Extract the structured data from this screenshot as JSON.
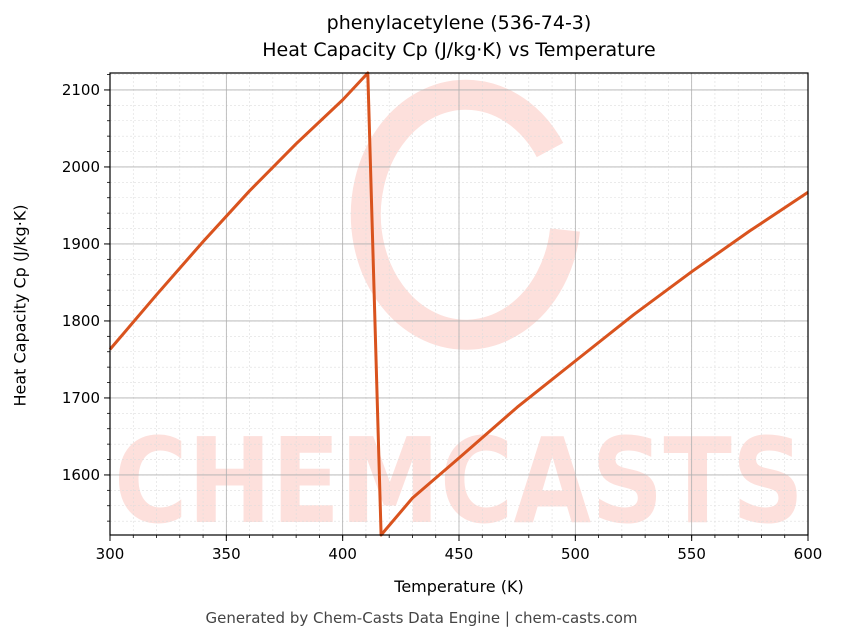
{
  "chart_data": {
    "type": "line",
    "title": "phenylacetylene (536-74-3)",
    "subtitle": "Heat Capacity Cp (J/kg·K) vs Temperature",
    "xlabel": "Temperature (K)",
    "ylabel": "Heat Capacity Cp (J/kg·K)",
    "xlim": [
      300,
      600
    ],
    "ylim": [
      1522,
      2122
    ],
    "xticks": [
      300,
      350,
      400,
      450,
      500,
      550,
      600
    ],
    "yticks": [
      1600,
      1700,
      1800,
      1900,
      2000,
      2100
    ],
    "grid": true,
    "legend": null,
    "series": [
      {
        "name": "Cp",
        "color": "#d9531e",
        "x": [
          300,
          320,
          340,
          360,
          380,
          400,
          410.8,
          416.5,
          430,
          450,
          475,
          500,
          525,
          550,
          575,
          600
        ],
        "y": [
          1763,
          1834,
          1903,
          1969,
          2030,
          2087,
          2122,
          1522,
          1570,
          1622,
          1688,
          1748,
          1808,
          1864,
          1917,
          1967
        ]
      }
    ],
    "watermark": "CHEMCASTS"
  },
  "footer": "Generated by Chem-Casts Data Engine | chem-casts.com"
}
